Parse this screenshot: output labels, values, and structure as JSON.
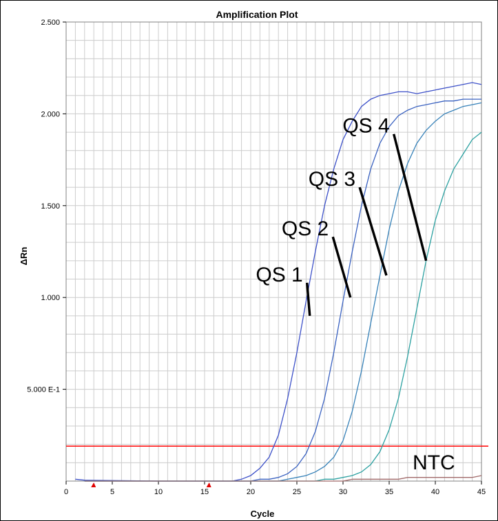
{
  "chart_data": {
    "type": "line",
    "title": "Amplification Plot",
    "xlabel": "Cycle",
    "ylabel": "ΔRn",
    "xlim": [
      0,
      45
    ],
    "ylim": [
      0,
      2.5
    ],
    "x_ticks": [
      0,
      5,
      10,
      15,
      20,
      25,
      30,
      35,
      40,
      45
    ],
    "y_ticks": [
      {
        "value": 0.5,
        "label": "5.000 E-1"
      },
      {
        "value": 1.0,
        "label": "1.000"
      },
      {
        "value": 1.5,
        "label": "1.500"
      },
      {
        "value": 2.0,
        "label": "2.000"
      },
      {
        "value": 2.5,
        "label": "2.500"
      }
    ],
    "grid": true,
    "threshold": {
      "value": 0.19,
      "color": "#ff0000"
    },
    "baseline_markers": [
      3,
      15.5
    ],
    "series": [
      {
        "name": "QS 4",
        "color": "#3b4fc8",
        "points": [
          [
            1,
            0.01
          ],
          [
            2,
            0.005
          ],
          [
            10,
            0.0
          ],
          [
            17,
            0.0
          ],
          [
            18,
            0.0
          ],
          [
            19,
            0.01
          ],
          [
            20,
            0.03
          ],
          [
            21,
            0.07
          ],
          [
            22,
            0.13
          ],
          [
            23,
            0.25
          ],
          [
            24,
            0.45
          ],
          [
            25,
            0.7
          ],
          [
            26,
            0.98
          ],
          [
            27,
            1.25
          ],
          [
            28,
            1.5
          ],
          [
            29,
            1.7
          ],
          [
            30,
            1.86
          ],
          [
            31,
            1.96
          ],
          [
            32,
            2.04
          ],
          [
            33,
            2.08
          ],
          [
            34,
            2.1
          ],
          [
            35,
            2.11
          ],
          [
            36,
            2.12
          ],
          [
            37,
            2.12
          ],
          [
            38,
            2.11
          ],
          [
            39,
            2.12
          ],
          [
            40,
            2.13
          ],
          [
            41,
            2.14
          ],
          [
            42,
            2.15
          ],
          [
            43,
            2.16
          ],
          [
            44,
            2.17
          ],
          [
            45,
            2.16
          ]
        ]
      },
      {
        "name": "QS 3",
        "color": "#3860c0",
        "points": [
          [
            2,
            0.0
          ],
          [
            10,
            0.0
          ],
          [
            20,
            0.0
          ],
          [
            21,
            0.01
          ],
          [
            22,
            0.01
          ],
          [
            23,
            0.02
          ],
          [
            24,
            0.04
          ],
          [
            25,
            0.08
          ],
          [
            26,
            0.15
          ],
          [
            27,
            0.27
          ],
          [
            28,
            0.45
          ],
          [
            29,
            0.7
          ],
          [
            30,
            0.98
          ],
          [
            31,
            1.25
          ],
          [
            32,
            1.5
          ],
          [
            33,
            1.7
          ],
          [
            34,
            1.84
          ],
          [
            35,
            1.93
          ],
          [
            36,
            1.99
          ],
          [
            37,
            2.02
          ],
          [
            38,
            2.04
          ],
          [
            39,
            2.05
          ],
          [
            40,
            2.06
          ],
          [
            41,
            2.07
          ],
          [
            42,
            2.07
          ],
          [
            43,
            2.08
          ],
          [
            44,
            2.08
          ],
          [
            45,
            2.08
          ]
        ]
      },
      {
        "name": "QS 2",
        "color": "#3480b8",
        "points": [
          [
            2,
            0.0
          ],
          [
            20,
            0.0
          ],
          [
            22,
            0.0
          ],
          [
            23,
            0.0
          ],
          [
            24,
            0.01
          ],
          [
            25,
            0.02
          ],
          [
            26,
            0.03
          ],
          [
            27,
            0.05
          ],
          [
            28,
            0.08
          ],
          [
            29,
            0.13
          ],
          [
            30,
            0.22
          ],
          [
            31,
            0.38
          ],
          [
            32,
            0.6
          ],
          [
            33,
            0.86
          ],
          [
            34,
            1.12
          ],
          [
            35,
            1.37
          ],
          [
            36,
            1.58
          ],
          [
            37,
            1.73
          ],
          [
            38,
            1.84
          ],
          [
            39,
            1.91
          ],
          [
            40,
            1.96
          ],
          [
            41,
            2.0
          ],
          [
            42,
            2.02
          ],
          [
            43,
            2.04
          ],
          [
            44,
            2.05
          ],
          [
            45,
            2.06
          ]
        ]
      },
      {
        "name": "QS 1",
        "color": "#2aa0a0",
        "points": [
          [
            2,
            0.0
          ],
          [
            25,
            0.0
          ],
          [
            27,
            0.0
          ],
          [
            28,
            0.01
          ],
          [
            29,
            0.01
          ],
          [
            30,
            0.02
          ],
          [
            31,
            0.03
          ],
          [
            32,
            0.05
          ],
          [
            33,
            0.09
          ],
          [
            34,
            0.16
          ],
          [
            35,
            0.28
          ],
          [
            36,
            0.45
          ],
          [
            37,
            0.68
          ],
          [
            38,
            0.94
          ],
          [
            39,
            1.2
          ],
          [
            40,
            1.42
          ],
          [
            41,
            1.58
          ],
          [
            42,
            1.7
          ],
          [
            43,
            1.78
          ],
          [
            44,
            1.86
          ],
          [
            45,
            1.9
          ]
        ]
      },
      {
        "name": "NTC",
        "color": "#a06868",
        "points": [
          [
            2,
            0.0
          ],
          [
            30,
            0.0
          ],
          [
            31,
            0.01
          ],
          [
            33,
            0.01
          ],
          [
            35,
            0.01
          ],
          [
            36,
            0.01
          ],
          [
            37,
            0.02
          ],
          [
            38,
            0.02
          ],
          [
            40,
            0.02
          ],
          [
            42,
            0.02
          ],
          [
            44,
            0.02
          ],
          [
            45,
            0.03
          ]
        ]
      }
    ],
    "annotations": [
      {
        "label": "QS 4",
        "point": [
          39,
          1.2
        ],
        "text_anchor": [
          35.5,
          1.89
        ]
      },
      {
        "label": "QS 3",
        "point": [
          34.7,
          1.12
        ],
        "text_anchor": [
          31.8,
          1.6
        ]
      },
      {
        "label": "QS 2",
        "point": [
          30.8,
          1.0
        ],
        "text_anchor": [
          28.9,
          1.33
        ]
      },
      {
        "label": "QS 1",
        "point": [
          26.4,
          0.9
        ],
        "text_anchor": [
          26.1,
          1.08
        ]
      }
    ],
    "ntc_label": "NTC"
  }
}
